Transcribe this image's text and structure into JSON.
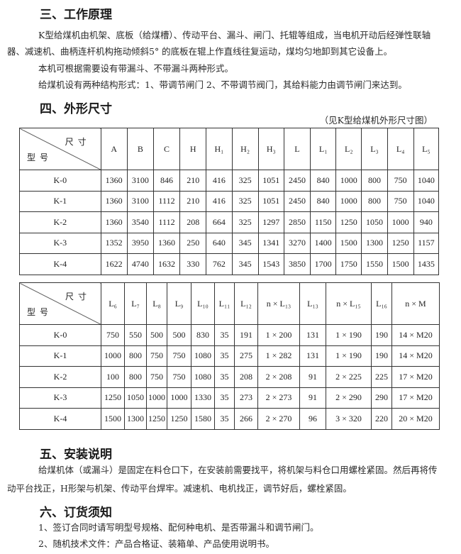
{
  "s3": {
    "title": "三、工作原理",
    "lines": [
      "K型给煤机由机架、底板（给煤槽）、传动平台、漏斗、闸门、托辊等组成，当电机开动后经弹性联轴",
      "器、减速机、曲柄连杆机构拖动倾斜5° 的底板在辊上作直线往复运动，煤均匀地卸到其它设备上。",
      "本机可根据需要设有带漏斗、不带漏斗两种形式。",
      "给煤机设有两种结构形式：1、带调节闸门 2、不带调节阀门，其给料能力由调节闸门来达到。"
    ]
  },
  "s4": {
    "title": "四、外形尺寸",
    "caption": "（见K型给煤机外形尺寸图）"
  },
  "corner": {
    "top": "尺寸",
    "bottom": "型号"
  },
  "t1": {
    "headers": [
      "A",
      "B",
      "C",
      "H",
      "H₁",
      "H₂",
      "H₃",
      "L",
      "L₁",
      "L₂",
      "L₃",
      "L₄",
      "L₅"
    ],
    "rows": [
      [
        "K-0",
        "1360",
        "3100",
        "846",
        "210",
        "416",
        "325",
        "1051",
        "2450",
        "840",
        "1000",
        "800",
        "750",
        "1040"
      ],
      [
        "K-1",
        "1360",
        "3100",
        "1112",
        "210",
        "416",
        "325",
        "1051",
        "2450",
        "840",
        "1000",
        "800",
        "750",
        "1040"
      ],
      [
        "K-2",
        "1360",
        "3540",
        "1112",
        "208",
        "664",
        "325",
        "1297",
        "2850",
        "1150",
        "1250",
        "1050",
        "1000",
        "940"
      ],
      [
        "K-3",
        "1352",
        "3950",
        "1360",
        "250",
        "640",
        "345",
        "1341",
        "3270",
        "1400",
        "1500",
        "1300",
        "1250",
        "1157"
      ],
      [
        "K-4",
        "1622",
        "4740",
        "1632",
        "330",
        "762",
        "345",
        "1543",
        "3850",
        "1700",
        "1750",
        "1550",
        "1500",
        "1435"
      ]
    ]
  },
  "t2": {
    "headers": [
      "L₆",
      "L₇",
      "L₈",
      "L₉",
      "L₁₀",
      "L₁₁",
      "L₁₂",
      "n × L₁₃",
      "L₁₃",
      "n × L₁₅",
      "L₁₆",
      "n × M"
    ],
    "rows": [
      [
        "K-0",
        "750",
        "550",
        "500",
        "500",
        "830",
        "35",
        "191",
        "1 × 200",
        "131",
        "1 × 190",
        "190",
        "14 × M20"
      ],
      [
        "K-1",
        "1000",
        "800",
        "750",
        "750",
        "1080",
        "35",
        "275",
        "1 × 282",
        "131",
        "1 × 190",
        "190",
        "14 × M20"
      ],
      [
        "K-2",
        "100",
        "800",
        "750",
        "750",
        "1080",
        "35",
        "208",
        "2 × 208",
        "91",
        "2 × 225",
        "225",
        "17 × M20"
      ],
      [
        "K-3",
        "1250",
        "1050",
        "1000",
        "1000",
        "1330",
        "35",
        "273",
        "2 × 273",
        "91",
        "2 × 290",
        "290",
        "17 × M20"
      ],
      [
        "K-4",
        "1500",
        "1300",
        "1250",
        "1250",
        "1580",
        "35",
        "266",
        "2 × 270",
        "96",
        "3 × 320",
        "220",
        "20 × M20"
      ]
    ]
  },
  "s5": {
    "title": "五、安装说明",
    "lines": [
      "给煤机体（或漏斗）是固定在料仓口下，在安装前需要找平，将机架与料仓口用螺栓紧固。然后再将传",
      "动平台找正，H形架与机架、传动平台焊牢。减速机、电机找正，调节好后，螺栓紧固。"
    ]
  },
  "s6": {
    "title": "六、订货须知",
    "lines": [
      "1、签订合同时请写明型号规格、配何种电机、是否带漏斗和调节闸门。",
      "2、随机技术文件：产品合格证、装箱单、产品使用说明书。"
    ]
  }
}
